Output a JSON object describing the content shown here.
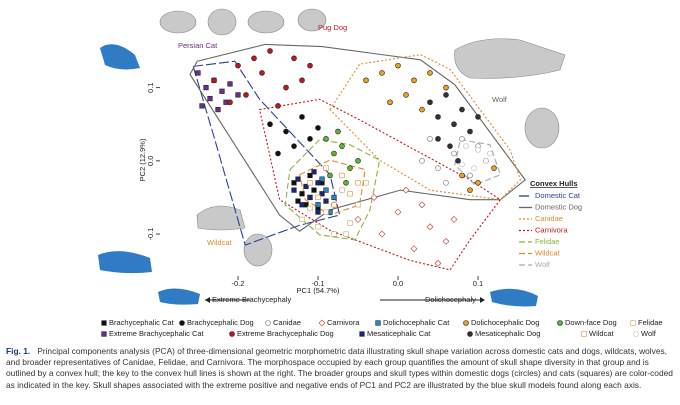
{
  "chart_data": {
    "type": "scatter",
    "x_label": "PC1 (54.7%)",
    "y_label": "PC2 (12.9%)",
    "xlim": [
      -0.3,
      0.165
    ],
    "ylim": [
      -0.16,
      0.165
    ],
    "xticks": [
      -0.2,
      -0.1,
      {
        "value": 0,
        "label": "0.0"
      },
      0.1
    ],
    "yticks": [
      -0.1,
      {
        "value": 0,
        "label": "0.0"
      },
      0.1
    ],
    "series": [
      {
        "name": "Brachycephalic Cat",
        "color": "#111111",
        "marker": "square",
        "filled": true,
        "x": [
          -0.13,
          -0.12,
          -0.11,
          -0.115,
          -0.105,
          -0.125,
          -0.1,
          -0.095
        ],
        "y": [
          -0.03,
          -0.045,
          -0.02,
          -0.06,
          -0.04,
          -0.055,
          -0.065,
          -0.03
        ]
      },
      {
        "name": "Brachycephalic Dog",
        "color": "#111111",
        "marker": "circle",
        "filled": true,
        "x": [
          -0.16,
          -0.14,
          -0.13,
          -0.12,
          -0.15,
          -0.11,
          -0.1
        ],
        "y": [
          0.05,
          0.04,
          0.02,
          0.06,
          0.01,
          0.03,
          0.045
        ]
      },
      {
        "name": "Canidae",
        "color": "#777777",
        "marker": "circle",
        "filled": false,
        "x": [
          0.03,
          0.05,
          0.07,
          0.09,
          0.06,
          0.08,
          0.1,
          0.04
        ],
        "y": [
          0.0,
          -0.01,
          0.01,
          -0.02,
          -0.03,
          0.03,
          0.02,
          0.03
        ]
      },
      {
        "name": "Carnivora",
        "color": "#c0392b",
        "marker": "diamond",
        "filled": false,
        "x": [
          -0.08,
          -0.05,
          -0.02,
          0.0,
          0.02,
          0.04,
          0.06,
          0.03,
          -0.03,
          0.01,
          0.05,
          0.07
        ],
        "y": [
          -0.06,
          -0.08,
          -0.1,
          -0.07,
          -0.12,
          -0.09,
          -0.11,
          -0.06,
          -0.05,
          -0.04,
          -0.14,
          -0.08
        ]
      },
      {
        "name": "Dolichocephalic Cat",
        "color": "#1e88c8",
        "marker": "square",
        "filled": true,
        "x": [
          -0.11,
          -0.1,
          -0.09,
          -0.085,
          -0.095,
          -0.08
        ],
        "y": [
          -0.05,
          -0.06,
          -0.04,
          -0.07,
          -0.025,
          -0.05
        ]
      },
      {
        "name": "Dolichocephalic Dog",
        "color": "#f0a020",
        "marker": "circle",
        "filled": true,
        "x": [
          -0.04,
          -0.02,
          0.0,
          0.02,
          0.04,
          0.06,
          0.01,
          -0.01,
          0.03,
          0.08,
          0.1,
          0.12,
          0.09,
          0.11
        ],
        "y": [
          0.11,
          0.12,
          0.13,
          0.11,
          0.12,
          0.1,
          0.09,
          0.08,
          0.07,
          -0.02,
          -0.03,
          -0.01,
          -0.04,
          0.0
        ]
      },
      {
        "name": "Down-face Dog",
        "color": "#5cb82d",
        "marker": "circle",
        "filled": true,
        "x": [
          -0.09,
          -0.08,
          -0.07,
          -0.06,
          -0.085,
          -0.075,
          -0.05,
          -0.065
        ],
        "y": [
          0.03,
          0.01,
          0.02,
          -0.01,
          -0.02,
          0.04,
          0.0,
          -0.03
        ]
      },
      {
        "name": "Felidae",
        "color": "#c8a96e",
        "marker": "square",
        "filled": false,
        "x": [
          -0.12,
          -0.1,
          -0.08,
          -0.06,
          -0.05,
          -0.07,
          -0.09,
          -0.04,
          -0.11,
          -0.065
        ],
        "y": [
          -0.08,
          -0.09,
          -0.1,
          -0.085,
          -0.06,
          -0.04,
          -0.07,
          -0.03,
          -0.065,
          -0.1
        ]
      },
      {
        "name": "Extreme Brachycephalic Cat",
        "color": "#6a2c91",
        "marker": "square",
        "filled": true,
        "x": [
          -0.25,
          -0.24,
          -0.235,
          -0.23,
          -0.22,
          -0.215,
          -0.21,
          -0.225,
          -0.2,
          -0.245
        ],
        "y": [
          0.12,
          0.1,
          0.085,
          0.11,
          0.095,
          0.08,
          0.105,
          0.07,
          0.09,
          0.075
        ]
      },
      {
        "name": "Extreme Brachycephalic Dog",
        "color": "#c0161c",
        "marker": "circle",
        "filled": true,
        "x": [
          -0.23,
          -0.2,
          -0.18,
          -0.17,
          -0.16,
          -0.14,
          -0.12,
          -0.19,
          -0.15,
          -0.13,
          -0.21,
          -0.11
        ],
        "y": [
          0.11,
          0.13,
          0.14,
          0.12,
          0.15,
          0.1,
          0.11,
          0.09,
          0.075,
          0.14,
          0.08,
          0.13
        ]
      },
      {
        "name": "Mesaticephalic Cat",
        "color": "#1a237e",
        "marker": "square",
        "filled": true,
        "x": [
          -0.125,
          -0.115,
          -0.11,
          -0.1,
          -0.12,
          -0.105,
          -0.095,
          -0.13,
          -0.09,
          -0.1
        ],
        "y": [
          -0.025,
          -0.035,
          -0.05,
          -0.03,
          -0.06,
          -0.015,
          -0.045,
          -0.04,
          -0.055,
          -0.07
        ]
      },
      {
        "name": "Mesaticephalic Dog",
        "color": "#333333",
        "marker": "circle",
        "filled": true,
        "x": [
          0.04,
          0.05,
          0.06,
          0.07,
          0.08,
          0.05,
          0.065,
          0.09,
          0.1,
          0.075
        ],
        "y": [
          0.08,
          0.06,
          0.09,
          0.05,
          0.07,
          0.03,
          0.02,
          0.04,
          0.06,
          0.0
        ]
      },
      {
        "name": "Wildcat",
        "color": "#e08a2c",
        "marker": "square",
        "filled": false,
        "x": [
          -0.11,
          -0.09,
          -0.07,
          -0.06,
          -0.08,
          -0.1,
          -0.05
        ],
        "y": [
          -0.03,
          -0.01,
          -0.02,
          -0.045,
          -0.06,
          -0.05,
          -0.03
        ]
      },
      {
        "name": "Wolf",
        "color": "#bbbbbb",
        "marker": "circle",
        "filled": false,
        "x": [
          0.085,
          0.1,
          0.11,
          0.095,
          0.115,
          0.08
        ],
        "y": [
          0.02,
          0.015,
          0.0,
          -0.01,
          0.01,
          -0.005
        ]
      }
    ],
    "hulls_title": "Convex Hulls",
    "hulls": [
      {
        "name": "Domestic Cat",
        "color": "#2a3f9e",
        "dash": "10 3",
        "x": [
          -0.256,
          -0.204,
          -0.173,
          -0.085,
          -0.073,
          -0.123,
          -0.191,
          -0.229
        ],
        "y": [
          0.129,
          0.136,
          0.084,
          -0.019,
          -0.074,
          -0.088,
          -0.115,
          0.029
        ]
      },
      {
        "name": "Domestic Dog",
        "color": "#666666",
        "dash": "none",
        "x": [
          -0.251,
          -0.166,
          -0.095,
          0.028,
          0.071,
          0.159,
          0.128,
          0.09,
          0.003,
          -0.085,
          -0.123,
          -0.148,
          -0.26
        ],
        "y": [
          0.136,
          0.159,
          0.156,
          0.138,
          0.104,
          -0.026,
          -0.053,
          -0.053,
          -0.04,
          -0.067,
          -0.096,
          -0.074,
          0.118
        ]
      },
      {
        "name": "Canidae",
        "color": "#e08a2c",
        "dash": "2 2",
        "x": [
          -0.085,
          -0.048,
          0.028,
          0.065,
          0.14,
          0.153,
          0.128,
          0.04,
          -0.023
        ],
        "y": [
          0.07,
          0.132,
          0.145,
          0.125,
          0.015,
          -0.026,
          -0.053,
          -0.04,
          0.001
        ]
      },
      {
        "name": "Carnivora",
        "color": "#c0161c",
        "dash": "2 2",
        "x": [
          -0.173,
          -0.098,
          -0.048,
          0.09,
          0.128,
          0.09,
          0.065,
          0.015,
          -0.085,
          -0.148
        ],
        "y": [
          0.07,
          0.084,
          0.056,
          -0.026,
          -0.053,
          -0.108,
          -0.149,
          -0.136,
          -0.095,
          -0.053
        ]
      },
      {
        "name": "Felidae",
        "color": "#8db33a",
        "dash": "6 3",
        "x": [
          -0.135,
          -0.098,
          -0.06,
          -0.023,
          -0.035,
          -0.054,
          -0.098,
          -0.141
        ],
        "y": [
          -0.012,
          0.029,
          0.022,
          0.001,
          -0.067,
          -0.108,
          -0.101,
          -0.06
        ]
      },
      {
        "name": "Wildcat",
        "color": "#e08a2c",
        "dash": "6 3",
        "x": [
          -0.123,
          -0.085,
          -0.041,
          -0.048,
          -0.085,
          -0.116
        ],
        "y": [
          -0.019,
          0.001,
          -0.012,
          -0.06,
          -0.074,
          -0.053
        ]
      },
      {
        "name": "Wolf",
        "color": "#aaaaaa",
        "dash": "6 3",
        "x": [
          0.078,
          0.115,
          0.128,
          0.096,
          0.071
        ],
        "y": [
          0.029,
          0.022,
          -0.019,
          -0.033,
          -0.005
        ]
      }
    ],
    "annotations": {
      "persian": "Persian Cat",
      "pug": "Pug Dog",
      "wolf": "Wolf",
      "wildcat": "Wildcat",
      "left_arrow": "Extreme Brachycephaly",
      "right_arrow": "Dolichocephaly"
    }
  },
  "caption": {
    "label": "Fig. 1.",
    "text": "Principal components analysis (PCA) of three-dimensional geometric morphometric data illustrating skull shape variation across domestic cats and dogs, wildcats, wolves, and broader representatives of Canidae, Felidae, and Carnivora. The morphospace occupied by each group quantifies the amount of skull shape diversity in that group and is outlined by a convex hull; the key to the convex hull lines is shown at the right. The broader groups and skull types within domestic dogs (circles) and cats (squares) are color-coded as indicated in the key. Skull shapes associated with the extreme positive and negative ends of PC1 and PC2 are illustrated by the blue skull models found along each axis."
  }
}
